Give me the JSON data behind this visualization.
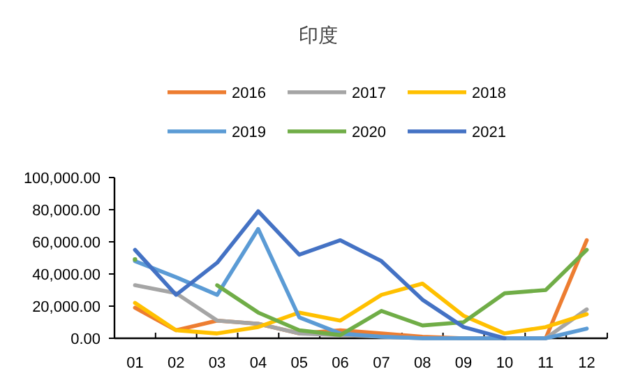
{
  "chart_data": {
    "type": "line",
    "title": "印度",
    "categories": [
      "01",
      "02",
      "03",
      "04",
      "05",
      "06",
      "07",
      "08",
      "09",
      "10",
      "11",
      "12"
    ],
    "series": [
      {
        "name": "2016",
        "color": "#ed7d31",
        "values": [
          19000,
          5000,
          11000,
          9000,
          3000,
          5000,
          3000,
          1000,
          0,
          0,
          0,
          61000
        ]
      },
      {
        "name": "2017",
        "color": "#a5a5a5",
        "values": [
          33000,
          28000,
          11000,
          9000,
          3000,
          2000,
          1000,
          0,
          0,
          0,
          0,
          18000
        ]
      },
      {
        "name": "2018",
        "color": "#ffc000",
        "values": [
          22000,
          5000,
          3000,
          7000,
          16000,
          11000,
          27000,
          34000,
          14000,
          3000,
          7000,
          15000
        ]
      },
      {
        "name": "2019",
        "color": "#5b9bd5",
        "values": [
          48000,
          38000,
          27000,
          68000,
          13000,
          3000,
          1000,
          0,
          0,
          0,
          0,
          6000
        ]
      },
      {
        "name": "2020",
        "color": "#70ad47",
        "values": [
          49000,
          null,
          33000,
          16000,
          5000,
          2000,
          17000,
          8000,
          10000,
          28000,
          30000,
          55000
        ]
      },
      {
        "name": "2021",
        "color": "#4472c4",
        "values": [
          55000,
          27000,
          47000,
          79000,
          52000,
          61000,
          48000,
          24000,
          7000,
          0,
          null,
          null
        ]
      }
    ],
    "ylim": [
      0,
      100000
    ],
    "yticks": [
      {
        "value": 0,
        "label": "0.00"
      },
      {
        "value": 20000,
        "label": "20,000.00"
      },
      {
        "value": 40000,
        "label": "40,000.00"
      },
      {
        "value": 60000,
        "label": "60,000.00"
      },
      {
        "value": 80000,
        "label": "80,000.00"
      },
      {
        "value": 100000,
        "label": "100,000.00"
      }
    ],
    "legend": "top",
    "grid": false,
    "marker": "none",
    "line_style": "solid"
  }
}
